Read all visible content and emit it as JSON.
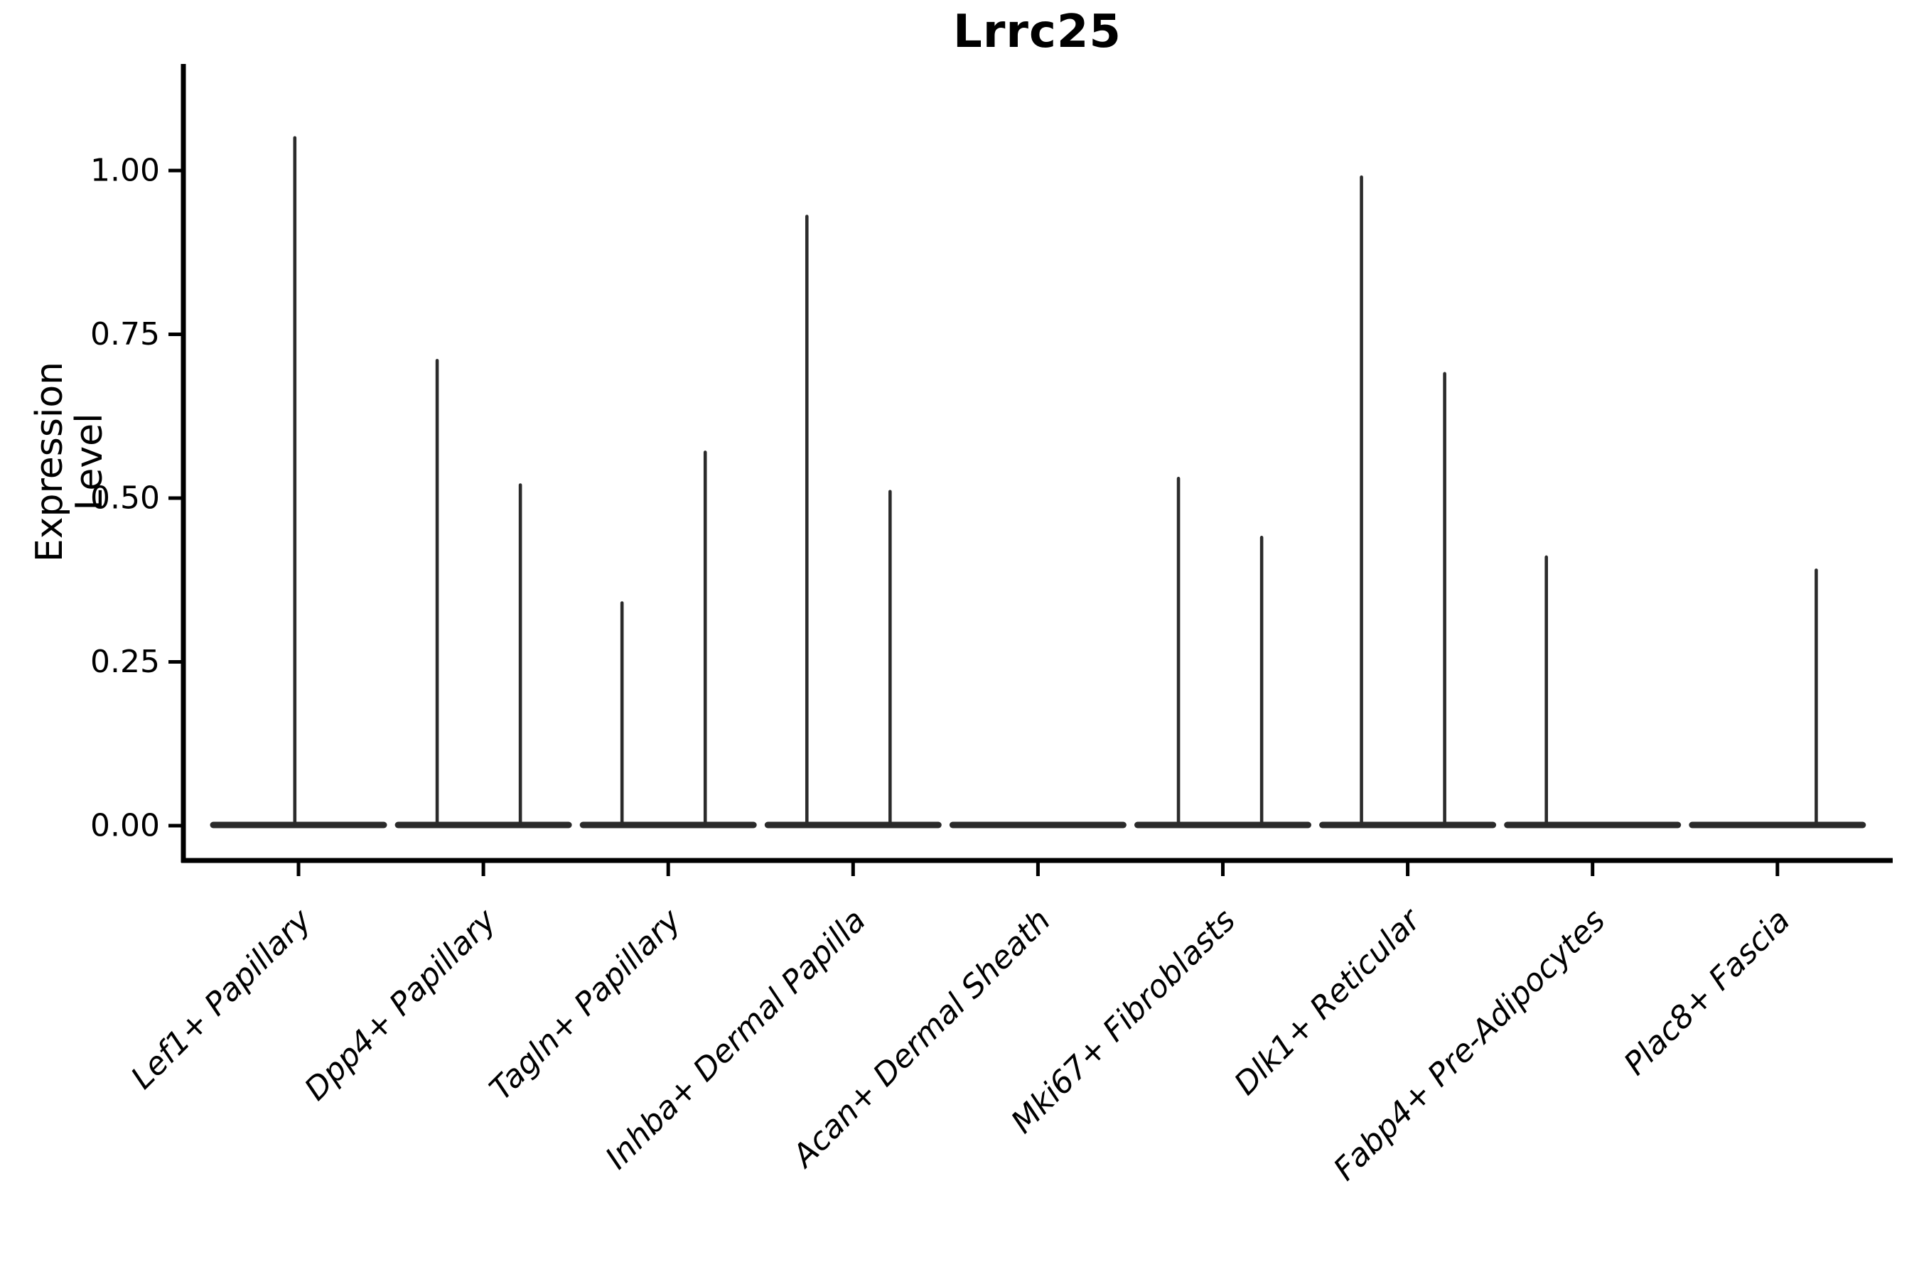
{
  "figure": {
    "title": "Lrrc25",
    "y_axis_label": "Expression Level"
  },
  "chart_data": {
    "type": "violin",
    "title": "Lrrc25",
    "xlabel": "",
    "ylabel": "Expression Level",
    "legend": "none",
    "grid": false,
    "background": "#ffffff",
    "axis_color": "#000000",
    "violin_color": "#2b2b2b",
    "ylim": [
      -0.055,
      1.163
    ],
    "y_ticks": [
      {
        "value": 0.0,
        "label": "0.00"
      },
      {
        "value": 0.25,
        "label": "0.25"
      },
      {
        "value": 0.5,
        "label": "0.50"
      },
      {
        "value": 0.75,
        "label": "0.75"
      },
      {
        "value": 1.0,
        "label": "1.00"
      }
    ],
    "categories": [
      "Lef1+ Papillary",
      "Dpp4+ Papillary",
      "Tagln+ Papillary",
      "Inhba+ Dermal Papilla",
      "Acan+ Dermal Sheath",
      "Mki67+ Fibroblasts",
      "Dlk1+ Reticular",
      "Fabp4+ Pre-Adipocytes",
      "Plac8+ Fascia"
    ],
    "violins": [
      {
        "category": "Lef1+ Papillary",
        "base_at": 0.0,
        "spikes": [
          {
            "rel_x": -0.02,
            "value": 1.05
          }
        ]
      },
      {
        "category": "Dpp4+ Papillary",
        "base_at": 0.0,
        "spikes": [
          {
            "rel_x": -0.25,
            "value": 0.71
          },
          {
            "rel_x": 0.2,
            "value": 0.52
          }
        ]
      },
      {
        "category": "Tagln+ Papillary",
        "base_at": 0.0,
        "spikes": [
          {
            "rel_x": -0.25,
            "value": 0.34
          },
          {
            "rel_x": 0.2,
            "value": 0.57
          }
        ]
      },
      {
        "category": "Inhba+ Dermal Papilla",
        "base_at": 0.0,
        "spikes": [
          {
            "rel_x": -0.25,
            "value": 0.93
          },
          {
            "rel_x": 0.2,
            "value": 0.51
          }
        ]
      },
      {
        "category": "Acan+ Dermal Sheath",
        "base_at": 0.0,
        "spikes": []
      },
      {
        "category": "Mki67+ Fibroblasts",
        "base_at": 0.0,
        "spikes": [
          {
            "rel_x": -0.24,
            "value": 0.53
          },
          {
            "rel_x": 0.21,
            "value": 0.44
          }
        ]
      },
      {
        "category": "Dlk1+ Reticular",
        "base_at": 0.0,
        "spikes": [
          {
            "rel_x": -0.25,
            "value": 0.99
          },
          {
            "rel_x": 0.2,
            "value": 0.69
          }
        ]
      },
      {
        "category": "Fabp4+ Pre-Adipocytes",
        "base_at": 0.0,
        "spikes": [
          {
            "rel_x": -0.25,
            "value": 0.41
          }
        ]
      },
      {
        "category": "Plac8+ Fascia",
        "base_at": 0.0,
        "spikes": [
          {
            "rel_x": 0.21,
            "value": 0.39
          }
        ]
      }
    ]
  }
}
